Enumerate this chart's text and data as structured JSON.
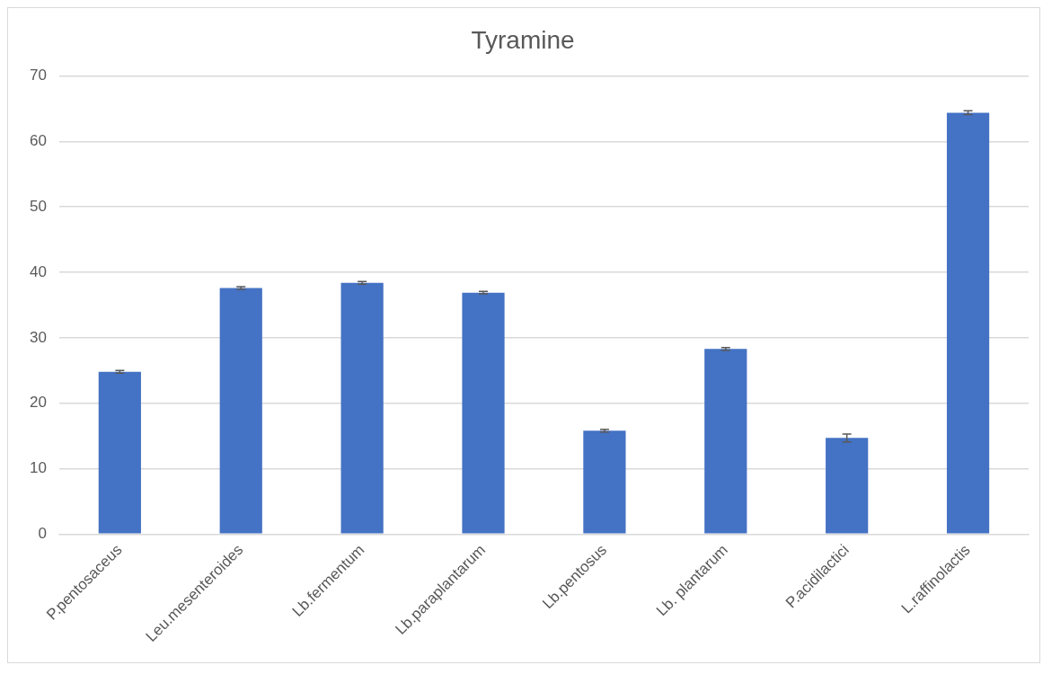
{
  "chart_data": {
    "type": "bar",
    "title": "Tyramine",
    "categories": [
      "P.pentosaceus",
      "Leu.mesenteroides",
      "Lb.fermentum",
      "Lb.paraplantarum",
      "Lb.pentosus",
      "Lb. plantarum",
      "P.acidilactici",
      "L.raffinolactis"
    ],
    "values": [
      24.8,
      37.6,
      38.4,
      36.9,
      15.8,
      28.3,
      14.7,
      64.4
    ],
    "errors": [
      0.2,
      0.2,
      0.2,
      0.2,
      0.2,
      0.2,
      0.6,
      0.3
    ],
    "color": "#4472c4",
    "ylim": [
      0,
      70
    ],
    "yticks": [
      0,
      10,
      20,
      30,
      40,
      50,
      60,
      70
    ],
    "grid": "y",
    "legend": false
  }
}
